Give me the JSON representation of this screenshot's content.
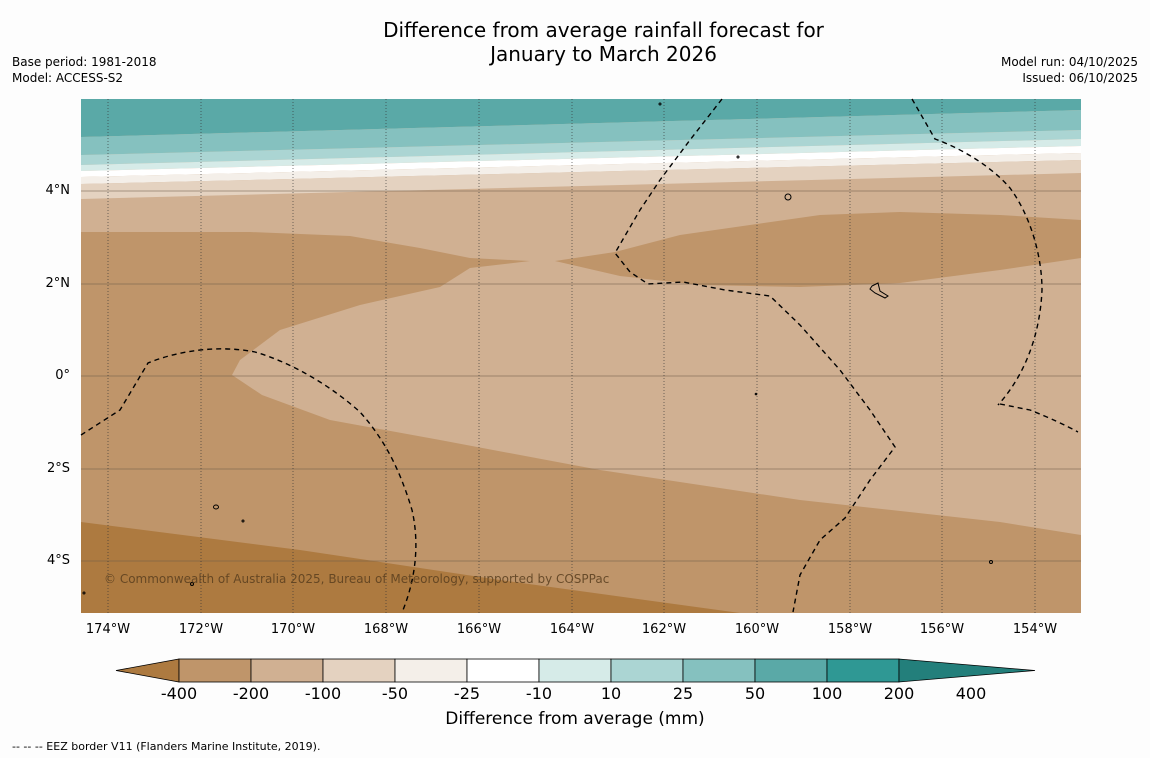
{
  "title": {
    "line1": "Difference from average rainfall forecast for",
    "line2": "January to March 2026"
  },
  "meta_left": {
    "base_period": "Base period: 1981-2018",
    "model": "Model: ACCESS-S2"
  },
  "meta_right": {
    "model_run": "Model run: 04/10/2025",
    "issued": "Issued: 06/10/2025"
  },
  "map": {
    "lat_labels": [
      "4°N",
      "2°N",
      "0°",
      "2°S",
      "4°S"
    ],
    "lon_labels": [
      "174°W",
      "172°W",
      "170°W",
      "168°W",
      "166°W",
      "164°W",
      "162°W",
      "160°W",
      "158°W",
      "156°W",
      "154°W"
    ],
    "copyright": "© Commonwealth of Australia 2025, Bureau of Meteorology, supported by COSPPac"
  },
  "colorbar": {
    "ticks": [
      "-400",
      "-200",
      "-100",
      "-50",
      "-25",
      "-10",
      "10",
      "25",
      "50",
      "100",
      "200",
      "400"
    ],
    "colors": [
      "#ad7a40",
      "#bf956a",
      "#d0b092",
      "#e4d2c0",
      "#f4efe9",
      "#ffffff",
      "#d6ebe8",
      "#abd5d3",
      "#85c1bf",
      "#5aa9a7",
      "#2f9894",
      "#237f7b"
    ],
    "title": "Difference from average (mm)"
  },
  "footnote": "--  --  -- EEZ border V11 (Flanders Marine Institute, 2019)."
}
